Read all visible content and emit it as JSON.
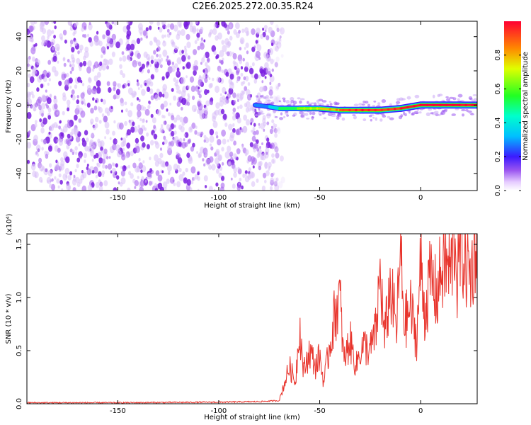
{
  "title": "C2E6.2025.272.00.35.R24",
  "chart_data": [
    {
      "type": "heatmap",
      "name": "spectrogram",
      "xlabel": "Height of straight line (km)",
      "ylabel": "Frequency (Hz)",
      "xlim": [
        -195,
        28
      ],
      "ylim": [
        -50,
        49
      ],
      "x_ticks": [
        -150,
        -100,
        -50,
        0
      ],
      "x_tick_labels": [
        "-150",
        "-100",
        "-50",
        "0"
      ],
      "y_ticks": [
        -40,
        -20,
        0,
        20,
        40
      ],
      "y_tick_labels": [
        "-40",
        "-20",
        "0",
        "20",
        "40"
      ],
      "colorbar": {
        "label": "Normalized spectral amplitude",
        "range": [
          0,
          1
        ],
        "ticks": [
          0.0,
          0.2,
          0.4,
          0.6,
          0.8
        ],
        "tick_labels": [
          "0.0",
          "0.2",
          "0.4",
          "0.6",
          "0.8"
        ]
      },
      "noise_region": {
        "x_range": [
          -195,
          -73
        ],
        "freq_range": [
          -50,
          49
        ],
        "amplitude": 0.12
      },
      "signal_ridge": [
        {
          "x": -82,
          "freq": 0,
          "amplitude": 0.25
        },
        {
          "x": -75,
          "freq": -1,
          "amplitude": 0.3
        },
        {
          "x": -70,
          "freq": -2,
          "amplitude": 0.45
        },
        {
          "x": -60,
          "freq": -2,
          "amplitude": 0.6
        },
        {
          "x": -50,
          "freq": -2,
          "amplitude": 0.7
        },
        {
          "x": -40,
          "freq": -3,
          "amplitude": 0.85
        },
        {
          "x": -30,
          "freq": -3,
          "amplitude": 0.95
        },
        {
          "x": -20,
          "freq": -3,
          "amplitude": 0.9
        },
        {
          "x": -10,
          "freq": -2,
          "amplitude": 0.95
        },
        {
          "x": 0,
          "freq": 0,
          "amplitude": 1.0
        },
        {
          "x": 10,
          "freq": 0,
          "amplitude": 1.0
        },
        {
          "x": 20,
          "freq": 0,
          "amplitude": 1.0
        },
        {
          "x": 28,
          "freq": 0,
          "amplitude": 0.95
        }
      ]
    },
    {
      "type": "line",
      "name": "snr",
      "xlabel": "Height of straight line (km)",
      "ylabel": "SNR (10 * v/v)",
      "y_multiplier": "(x10⁴)",
      "xlim": [
        -195,
        28
      ],
      "ylim": [
        0,
        1.6
      ],
      "x_ticks": [
        -150,
        -100,
        -50,
        0
      ],
      "x_tick_labels": [
        "-150",
        "-100",
        "-50",
        "0"
      ],
      "y_ticks": [
        0.0,
        0.5,
        1.0,
        1.5
      ],
      "y_tick_labels": [
        "0.0",
        "0.5",
        "1.0",
        "1.5"
      ],
      "series": [
        {
          "name": "SNR",
          "color": "#e8332b",
          "x": [
            -195,
            -150,
            -100,
            -80,
            -70,
            -65,
            -62,
            -60,
            -58,
            -55,
            -52,
            -50,
            -48,
            -45,
            -42,
            -40,
            -38,
            -35,
            -32,
            -30,
            -28,
            -25,
            -22,
            -20,
            -18,
            -15,
            -12,
            -10,
            -8,
            -5,
            -2,
            0,
            2,
            5,
            8,
            10,
            12,
            15,
            17,
            18,
            20,
            22,
            25,
            27,
            28
          ],
          "y": [
            0.01,
            0.01,
            0.015,
            0.02,
            0.03,
            0.35,
            0.2,
            0.75,
            0.3,
            0.5,
            0.35,
            0.45,
            0.2,
            0.55,
            0.9,
            1.0,
            0.4,
            0.6,
            0.35,
            0.5,
            0.55,
            0.5,
            0.7,
            1.25,
            0.6,
            1.1,
            0.7,
            1.4,
            0.75,
            0.9,
            0.6,
            1.3,
            0.85,
            1.2,
            1.0,
            1.25,
            1.3,
            1.25,
            1.65,
            1.15,
            1.5,
            1.35,
            1.2,
            1.55,
            1.35
          ]
        }
      ]
    }
  ]
}
